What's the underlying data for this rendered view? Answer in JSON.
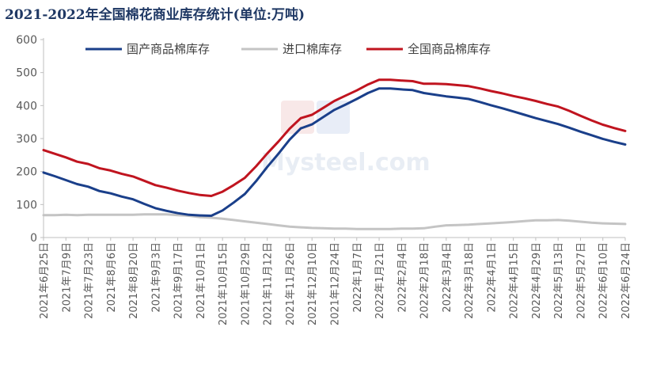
{
  "title": "2021-2022年全国棉花商业库存统计(单位:万吨)",
  "watermark": {
    "brand": "Mysteel.com"
  },
  "colors": {
    "domestic": "#1a3f8a",
    "imported": "#c4c4c4",
    "total": "#c0141f",
    "axis": "#bfbfbf",
    "label": "#595959"
  },
  "chart_data": {
    "type": "line",
    "title": "2021-2022年全国棉花商业库存统计(单位:万吨)",
    "xlabel": "",
    "ylabel": "",
    "ylim": [
      0,
      600
    ],
    "yticks": [
      0,
      100,
      200,
      300,
      400,
      500,
      600
    ],
    "grid": false,
    "legend_position": "top",
    "x": [
      "2021年6月25日",
      "2021年7月2日",
      "2021年7月9日",
      "2021年7月16日",
      "2021年7月23日",
      "2021年7月30日",
      "2021年8月6日",
      "2021年8月13日",
      "2021年8月20日",
      "2021年8月27日",
      "2021年9月3日",
      "2021年9月10日",
      "2021年9月17日",
      "2021年9月24日",
      "2021年10月1日",
      "2021年10月8日",
      "2021年10月15日",
      "2021年10月22日",
      "2021年10月29日",
      "2021年11月5日",
      "2021年11月12日",
      "2021年11月19日",
      "2021年11月26日",
      "2021年12月3日",
      "2021年12月10日",
      "2021年12月17日",
      "2021年12月24日",
      "2021年12月31日",
      "2022年1月7日",
      "2022年1月14日",
      "2022年1月21日",
      "2022年1月28日",
      "2022年2月4日",
      "2022年2月11日",
      "2022年2月18日",
      "2022年2月25日",
      "2022年3月4日",
      "2022年3月11日",
      "2022年3月18日",
      "2022年3月25日",
      "2022年4月1日",
      "2022年4月8日",
      "2022年4月15日",
      "2022年4月22日",
      "2022年4月29日",
      "2022年5月6日",
      "2022年5月13日",
      "2022年5月20日",
      "2022年5月27日",
      "2022年6月3日",
      "2022年6月10日",
      "2022年6月17日",
      "2022年6月24日"
    ],
    "xtick_labels": [
      "2021年6月25日",
      "2021年7月9日",
      "2021年7月23日",
      "2021年8月6日",
      "2021年8月20日",
      "2021年9月3日",
      "2021年9月17日",
      "2021年10月1日",
      "2021年10月15日",
      "2021年10月29日",
      "2021年11月12日",
      "2021年11月26日",
      "2021年12月10日",
      "2021年12月24日",
      "2022年1月7日",
      "2022年1月21日",
      "2022年2月4日",
      "2022年2月18日",
      "2022年3月4日",
      "2022年3月18日",
      "2022年4月1日",
      "2022年4月15日",
      "2022年4月29日",
      "2022年5月13日",
      "2022年5月27日",
      "2022年6月10日",
      "2022年6月24日"
    ],
    "series": [
      {
        "name": "国产商品棉库存",
        "color": "#1a3f8a",
        "values": [
          197,
          186,
          174,
          162,
          154,
          141,
          134,
          124,
          116,
          102,
          89,
          81,
          74,
          69,
          67,
          66,
          82,
          106,
          132,
          171,
          214,
          254,
          297,
          331,
          343,
          365,
          387,
          403,
          420,
          438,
          452,
          452,
          449,
          447,
          438,
          433,
          428,
          424,
          420,
          411,
          401,
          392,
          382,
          372,
          362,
          353,
          344,
          333,
          321,
          310,
          299,
          290,
          282
        ]
      },
      {
        "name": "进口棉库存",
        "color": "#c4c4c4",
        "values": [
          68,
          68,
          69,
          68,
          69,
          69,
          69,
          69,
          69,
          70,
          70,
          70,
          68,
          66,
          62,
          60,
          57,
          53,
          49,
          45,
          41,
          37,
          33,
          31,
          29,
          28,
          27,
          27,
          26,
          26,
          26,
          26,
          27,
          27,
          28,
          33,
          37,
          38,
          39,
          41,
          43,
          45,
          47,
          50,
          52,
          52,
          53,
          51,
          48,
          45,
          43,
          42,
          41
        ]
      },
      {
        "name": "全国商品棉库存",
        "color": "#c0141f",
        "values": [
          265,
          254,
          243,
          230,
          223,
          210,
          203,
          193,
          185,
          172,
          159,
          151,
          142,
          135,
          129,
          126,
          139,
          159,
          181,
          216,
          255,
          291,
          330,
          362,
          372,
          393,
          414,
          430,
          446,
          464,
          478,
          478,
          476,
          474,
          466,
          466,
          465,
          462,
          459,
          452,
          444,
          437,
          429,
          422,
          414,
          405,
          397,
          384,
          369,
          355,
          342,
          332,
          323
        ]
      }
    ]
  }
}
